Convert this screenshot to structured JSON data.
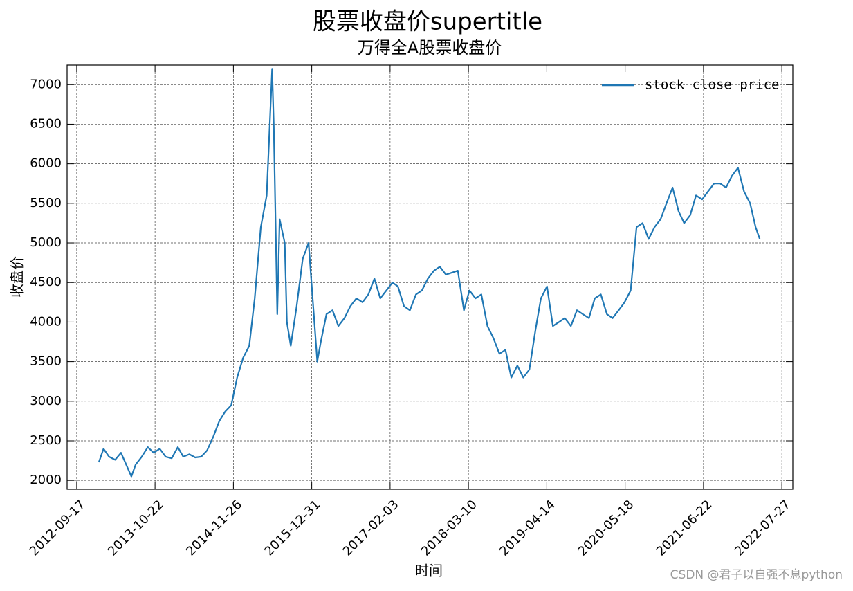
{
  "chart_data": {
    "type": "line",
    "title": "股票收盘价supertitle",
    "subtitle": "万得全A股票收盘价",
    "x_label": "时间",
    "y_label": "收盘价",
    "watermark": "CSDN @君子以自强不息python",
    "legend": "upper right",
    "grid": true,
    "xlim": [
      "2012-07-30",
      "2022-09-21"
    ],
    "xticks": [
      "2012-09-17",
      "2013-10-22",
      "2014-11-26",
      "2015-12-31",
      "2017-02-03",
      "2018-03-10",
      "2019-04-14",
      "2020-05-18",
      "2021-06-22",
      "2022-07-27"
    ],
    "ylim": [
      1888,
      7247
    ],
    "yticks": [
      2000,
      2500,
      3000,
      3500,
      4000,
      4500,
      5000,
      5500,
      6000,
      6500,
      7000
    ],
    "x": [
      "2013-01-08",
      "2013-02-01",
      "2013-03-01",
      "2013-04-01",
      "2013-05-01",
      "2013-06-23",
      "2013-07-15",
      "2013-08-15",
      "2013-09-15",
      "2013-10-15",
      "2013-11-15",
      "2013-12-15",
      "2014-01-15",
      "2014-02-15",
      "2014-03-15",
      "2014-04-15",
      "2014-05-15",
      "2014-06-15",
      "2014-07-15",
      "2014-08-15",
      "2014-09-15",
      "2014-10-15",
      "2014-11-15",
      "2014-12-15",
      "2015-01-15",
      "2015-02-15",
      "2015-03-15",
      "2015-04-15",
      "2015-05-15",
      "2015-06-12",
      "2015-06-20",
      "2015-07-08",
      "2015-07-20",
      "2015-08-15",
      "2015-08-26",
      "2015-09-15",
      "2015-10-15",
      "2015-11-15",
      "2015-12-15",
      "2016-01-28",
      "2016-02-15",
      "2016-03-15",
      "2016-04-15",
      "2016-05-15",
      "2016-06-15",
      "2016-07-15",
      "2016-08-15",
      "2016-09-15",
      "2016-10-15",
      "2016-11-15",
      "2016-12-15",
      "2017-01-15",
      "2017-02-15",
      "2017-03-15",
      "2017-04-15",
      "2017-05-15",
      "2017-06-15",
      "2017-07-15",
      "2017-08-15",
      "2017-09-15",
      "2017-10-15",
      "2017-11-15",
      "2018-01-15",
      "2018-02-15",
      "2018-03-15",
      "2018-04-15",
      "2018-05-15",
      "2018-06-15",
      "2018-07-15",
      "2018-08-15",
      "2018-09-15",
      "2018-10-15",
      "2018-11-15",
      "2018-12-15",
      "2019-01-15",
      "2019-02-15",
      "2019-03-15",
      "2019-04-15",
      "2019-05-15",
      "2019-06-15",
      "2019-07-15",
      "2019-08-15",
      "2019-09-15",
      "2019-10-15",
      "2019-11-15",
      "2019-12-15",
      "2020-01-15",
      "2020-02-15",
      "2020-03-15",
      "2020-04-15",
      "2020-05-15",
      "2020-06-15",
      "2020-07-15",
      "2020-08-15",
      "2020-09-15",
      "2020-10-15",
      "2020-11-15",
      "2020-12-15",
      "2021-01-15",
      "2021-02-15",
      "2021-03-15",
      "2021-04-15",
      "2021-05-15",
      "2021-06-15",
      "2021-07-15",
      "2021-08-15",
      "2021-09-15",
      "2021-10-15",
      "2021-11-15",
      "2021-12-15",
      "2022-01-15",
      "2022-02-15",
      "2022-03-15",
      "2022-04-05"
    ],
    "series": [
      {
        "name": "stock close price",
        "color": "#1f77b4",
        "values": [
          2230,
          2400,
          2300,
          2260,
          2350,
          2050,
          2200,
          2300,
          2420,
          2350,
          2400,
          2300,
          2280,
          2420,
          2300,
          2330,
          2290,
          2300,
          2380,
          2550,
          2750,
          2870,
          2950,
          3300,
          3550,
          3700,
          4300,
          5200,
          5600,
          7200,
          6500,
          4100,
          5300,
          5000,
          4000,
          3700,
          4200,
          4800,
          5000,
          3500,
          3750,
          4100,
          4150,
          3950,
          4050,
          4200,
          4300,
          4250,
          4350,
          4550,
          4300,
          4400,
          4500,
          4450,
          4200,
          4150,
          4350,
          4400,
          4550,
          4650,
          4700,
          4600,
          4650,
          4150,
          4400,
          4300,
          4350,
          3950,
          3800,
          3600,
          3650,
          3300,
          3450,
          3300,
          3400,
          3900,
          4300,
          4450,
          3950,
          4000,
          4050,
          3950,
          4150,
          4100,
          4050,
          4300,
          4350,
          4100,
          4050,
          4150,
          4250,
          4400,
          5200,
          5250,
          5050,
          5200,
          5300,
          5500,
          5700,
          5400,
          5250,
          5350,
          5600,
          5550,
          5650,
          5750,
          5750,
          5700,
          5850,
          5950,
          5650,
          5500,
          5200,
          5050
        ]
      }
    ]
  }
}
